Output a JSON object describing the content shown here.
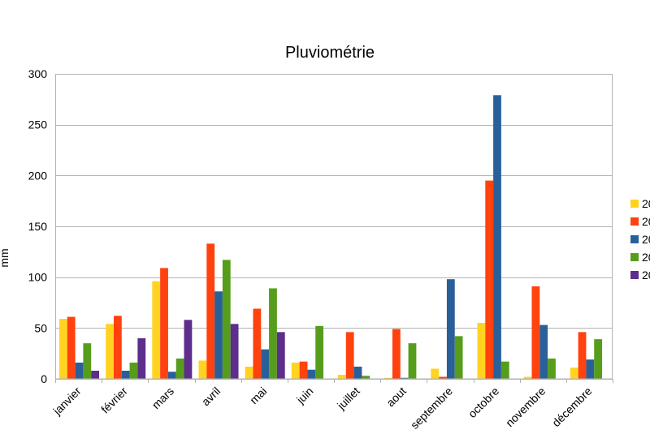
{
  "chart_data": {
    "type": "bar",
    "title": "Pluviométrie",
    "ylabel": "mm",
    "xlabel": "",
    "ylim": [
      0,
      300
    ],
    "yticks": [
      0,
      50,
      100,
      150,
      200,
      250,
      300
    ],
    "grid": true,
    "legend_position": "right",
    "categories": [
      "janvier",
      "février",
      "mars",
      "avril",
      "mai",
      "juin",
      "juillet",
      "aout",
      "septembre",
      "octobre",
      "novembre",
      "décembre"
    ],
    "series": [
      {
        "name": "20",
        "color": "#ffd320",
        "values": [
          59,
          54,
          96,
          18,
          12,
          16,
          4,
          1,
          10,
          55,
          2,
          11
        ]
      },
      {
        "name": "20",
        "color": "#ff420e",
        "values": [
          61,
          62,
          109,
          133,
          69,
          17,
          46,
          49,
          2,
          195,
          91,
          46
        ]
      },
      {
        "name": "20",
        "color": "#2a6099",
        "values": [
          16,
          8,
          7,
          86,
          29,
          9,
          12,
          1,
          98,
          279,
          53,
          19
        ]
      },
      {
        "name": "20",
        "color": "#579d1c",
        "values": [
          35,
          16,
          20,
          117,
          89,
          52,
          3,
          35,
          42,
          17,
          20,
          39
        ]
      },
      {
        "name": "20",
        "color": "#5d2e8c",
        "values": [
          8,
          40,
          58,
          54,
          46,
          0,
          0,
          0,
          0,
          0,
          0,
          0
        ]
      }
    ]
  }
}
